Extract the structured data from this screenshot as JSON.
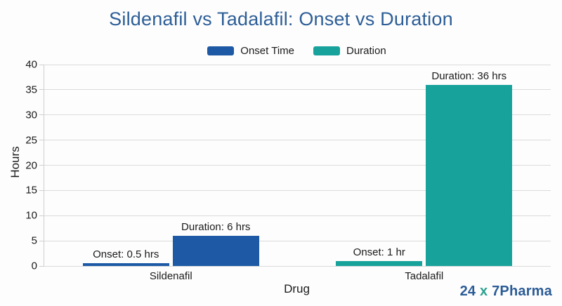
{
  "card": {
    "background": "#fdfdfd"
  },
  "chart_data": {
    "type": "bar",
    "title": "Sildenafil vs Tadalafil: Onset vs Duration",
    "title_color": "#2d5e97",
    "xlabel": "Drug",
    "ylabel": "Hours",
    "ylim": [
      0,
      40
    ],
    "yticks": [
      0,
      5,
      10,
      15,
      20,
      25,
      30,
      35,
      40
    ],
    "grid": "horizontal-only",
    "legend_position": "top-center",
    "categories": [
      "Sildenafil",
      "Tadalafil"
    ],
    "series": [
      {
        "name": "Onset Time",
        "color": "#1d59a5",
        "values": [
          0.5,
          1
        ]
      },
      {
        "name": "Duration",
        "color": "#18a29c",
        "values": [
          6,
          36
        ]
      }
    ],
    "legend": [
      {
        "label": "Onset Time",
        "color": "#1d59a5"
      },
      {
        "label": "Duration",
        "color": "#18a29c"
      }
    ],
    "groups": [
      {
        "category": "Sildenafil",
        "bar_color": "#1d59a5",
        "bars": [
          {
            "series": "Onset Time",
            "value": 0.5,
            "annotation": "Onset: 0.5 hrs"
          },
          {
            "series": "Duration",
            "value": 6,
            "annotation": "Duration: 6 hrs"
          }
        ]
      },
      {
        "category": "Tadalafil",
        "bar_color": "#18a29c",
        "bars": [
          {
            "series": "Onset Time",
            "value": 1,
            "annotation": "Onset: 1 hr"
          },
          {
            "series": "Duration",
            "value": 36,
            "annotation": "Duration: 36 hrs"
          }
        ]
      }
    ],
    "axis_text_color": "#1a1a1a",
    "gridline_color": "#dbdbdb",
    "spine_color": "#cfcfcf"
  },
  "branding": {
    "text_24": "24",
    "text_x": "x",
    "text_7pharma": "7Pharma",
    "blue": "#2b5c96",
    "teal": "#2ba18f"
  }
}
